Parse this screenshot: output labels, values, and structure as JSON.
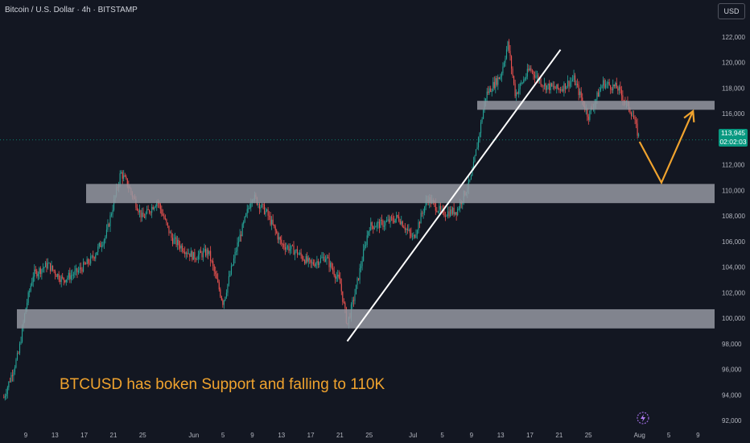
{
  "header": {
    "title": "Bitcoin / U.S. Dollar · 4h · BITSTAMP",
    "currency": "USD"
  },
  "price_tag": {
    "price": "113,945",
    "countdown": "02:02:03"
  },
  "annotation": {
    "text": "BTCUSD has boken Support and falling to 110K"
  },
  "colors": {
    "background": "#131722",
    "up": "#26a69a",
    "down": "#ef5350",
    "zone": "#9598a1",
    "trendline": "#ffffff",
    "projection": "#f0a32e",
    "last_price_line": "#089981"
  },
  "chart_data": {
    "type": "candlestick",
    "title": "Bitcoin / U.S. Dollar · 4h · BITSTAMP",
    "ylabel": "USD",
    "ylim": [
      91500,
      123500
    ],
    "y_ticks": [
      92000,
      94000,
      96000,
      98000,
      100000,
      102000,
      104000,
      106000,
      108000,
      110000,
      112000,
      114000,
      116000,
      118000,
      120000,
      122000
    ],
    "y_tick_labels": [
      "92,000",
      "94,000",
      "96,000",
      "98,000",
      "100,000",
      "102,000",
      "104,000",
      "106,000",
      "108,000",
      "110,000",
      "112,000",
      "114,000",
      "116,000",
      "118,000",
      "120,000",
      "122,000"
    ],
    "x_labels": [
      "9",
      "13",
      "17",
      "21",
      "25",
      "Jun",
      "5",
      "9",
      "13",
      "17",
      "21",
      "25",
      "Jul",
      "5",
      "9",
      "13",
      "17",
      "21",
      "25",
      "Aug",
      "5",
      "9"
    ],
    "last_price": 113945,
    "price_path": [
      [
        "May 6",
        93800
      ],
      [
        "May 8",
        97200
      ],
      [
        "May 9",
        100800
      ],
      [
        "May 10",
        103400
      ],
      [
        "May 12",
        104200
      ],
      [
        "May 14",
        103000
      ],
      [
        "May 16",
        103600
      ],
      [
        "May 18",
        104600
      ],
      [
        "May 20",
        106500
      ],
      [
        "May 22",
        111400
      ],
      [
        "May 23",
        110400
      ],
      [
        "May 25",
        107800
      ],
      [
        "May 27",
        109200
      ],
      [
        "May 29",
        106200
      ],
      [
        "Jun 1",
        104800
      ],
      [
        "Jun 3",
        105200
      ],
      [
        "Jun 5",
        101200
      ],
      [
        "Jun 7",
        105800
      ],
      [
        "Jun 9",
        109600
      ],
      [
        "Jun 11",
        108200
      ],
      [
        "Jun 13",
        105800
      ],
      [
        "Jun 15",
        105200
      ],
      [
        "Jun 17",
        104200
      ],
      [
        "Jun 19",
        104800
      ],
      [
        "Jun 21",
        102800
      ],
      [
        "Jun 22",
        99500
      ],
      [
        "Jun 23",
        101800
      ],
      [
        "Jun 25",
        107200
      ],
      [
        "Jun 27",
        107400
      ],
      [
        "Jun 29",
        107900
      ],
      [
        "Jul 1",
        106200
      ],
      [
        "Jul 3",
        109400
      ],
      [
        "Jul 5",
        108200
      ],
      [
        "Jul 7",
        108400
      ],
      [
        "Jul 9",
        111000
      ],
      [
        "Jul 11",
        117500
      ],
      [
        "Jul 13",
        119000
      ],
      [
        "Jul 14",
        121500
      ],
      [
        "Jul 15",
        117500
      ],
      [
        "Jul 17",
        119500
      ],
      [
        "Jul 19",
        118200
      ],
      [
        "Jul 21",
        117900
      ],
      [
        "Jul 23",
        118700
      ],
      [
        "Jul 25",
        115800
      ],
      [
        "Jul 27",
        118400
      ],
      [
        "Jul 29",
        118000
      ],
      [
        "Jul 31",
        116000
      ],
      [
        "Aug 1",
        113945
      ]
    ],
    "zones": [
      {
        "from": 109000,
        "to": 110500
      },
      {
        "from": 116300,
        "to": 117000
      },
      {
        "from": 99200,
        "to": 100700
      }
    ],
    "trendline": [
      [
        "Jun 22",
        98200
      ],
      [
        "Jul 17",
        121000
      ]
    ],
    "projection": [
      [
        "Aug 1",
        113800
      ],
      [
        "Aug 4",
        110600
      ],
      [
        "Aug 7",
        116200
      ]
    ],
    "grid": false
  }
}
